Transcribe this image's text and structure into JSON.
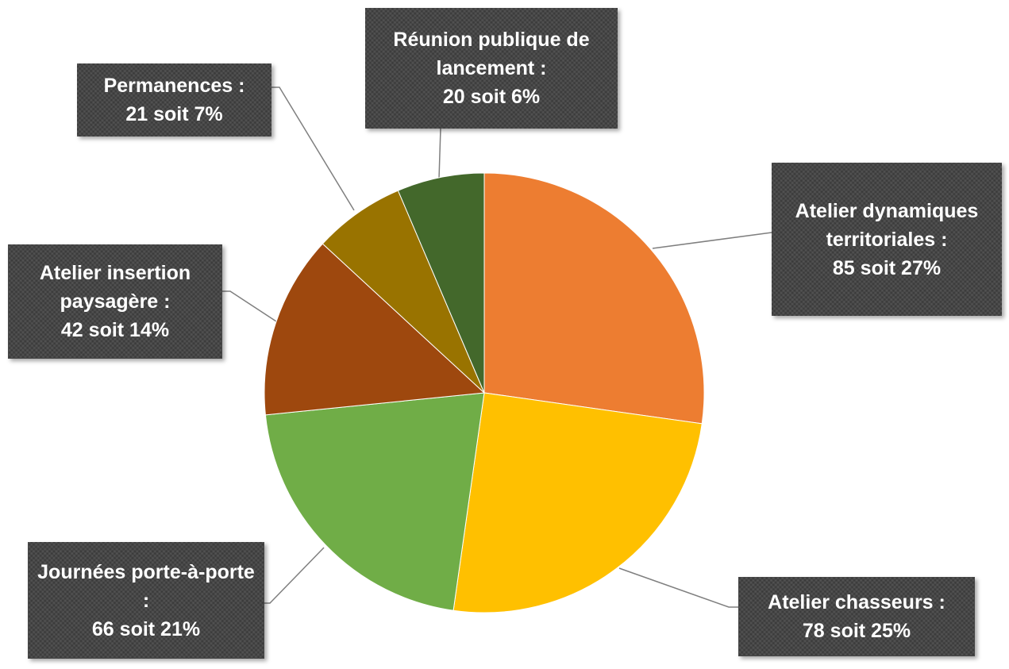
{
  "chart_data": {
    "type": "pie",
    "categories": [
      "Atelier dynamiques territoriales :",
      "Atelier chasseurs :",
      "Journées porte-à-porte :",
      "Atelier insertion paysagère :",
      "Permanences :",
      "Réunion publique de lancement :"
    ],
    "values": [
      85,
      78,
      66,
      42,
      21,
      20
    ],
    "value_labels": [
      "85 soit 27%",
      "78 soit 25%",
      "66 soit 21%",
      "42 soit 14%",
      "21 soit 7%",
      "20 soit 6%"
    ],
    "colors": [
      "#ED7D31",
      "#FFC000",
      "#70AD47",
      "#9E480E",
      "#997300",
      "#43682B"
    ]
  }
}
